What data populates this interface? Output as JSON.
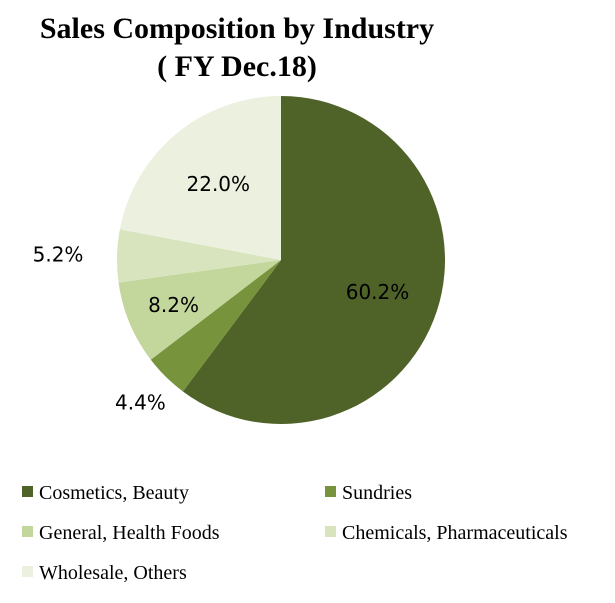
{
  "chart_data": {
    "type": "pie",
    "title": [
      "Sales Composition by Industry",
      "( FY Dec.18)"
    ],
    "start_angle_deg": 0,
    "direction": "clockwise",
    "legend_position": "bottom",
    "slices": [
      {
        "label": "Cosmetics, Beauty",
        "value": 60.2,
        "value_label": "60.2%",
        "color": "#4f6228"
      },
      {
        "label": "Sundries",
        "value": 4.4,
        "value_label": "4.4%",
        "color": "#77933c"
      },
      {
        "label": "General, Health Foods",
        "value": 8.2,
        "value_label": "8.2%",
        "color": "#c3d69b"
      },
      {
        "label": "Chemicals, Pharmaceuticals",
        "value": 5.2,
        "value_label": "5.2%",
        "color": "#d7e4bd"
      },
      {
        "label": "Wholesale, Others",
        "value": 22.0,
        "value_label": "22.0%",
        "color": "#ebf1de"
      }
    ]
  }
}
